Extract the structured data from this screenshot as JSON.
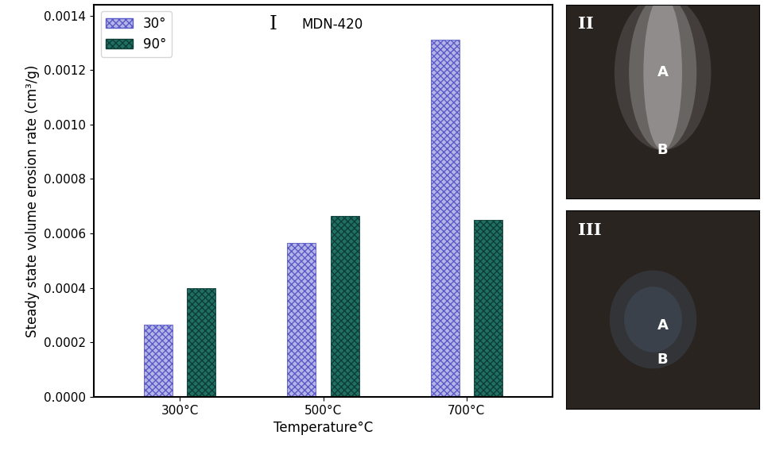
{
  "chart_data": {
    "type": "bar",
    "annotations": [
      "I",
      "MDN-420"
    ],
    "x_label": "Temperature°C",
    "y_label": "Steady state volume erosion rate (cm³/g)",
    "categories": [
      "300°C",
      "500°C",
      "700°C"
    ],
    "series": [
      {
        "name": "30°",
        "color": "#b4b4e6",
        "values": [
          0.000265,
          0.000565,
          0.00131
        ]
      },
      {
        "name": "90°",
        "color": "#1f6f63",
        "values": [
          0.0004,
          0.000665,
          0.00065
        ]
      }
    ],
    "ylim": [
      0,
      0.00144
    ],
    "yticks": [
      {
        "value": 0,
        "label": "0.0000"
      },
      {
        "value": 0.0002,
        "label": "0.0002"
      },
      {
        "value": 0.0004,
        "label": "0.0004"
      },
      {
        "value": 0.0006,
        "label": "0.0006"
      },
      {
        "value": 0.0008,
        "label": "0.0008"
      },
      {
        "value": 0.001,
        "label": "0.0010"
      },
      {
        "value": 0.0012,
        "label": "0.0012"
      },
      {
        "value": 0.0014,
        "label": "0.0014"
      }
    ],
    "legend": "upper left",
    "grid": false
  },
  "panels": [
    {
      "label": "II",
      "marks": [
        "A",
        "B"
      ]
    },
    {
      "label": "III",
      "marks": [
        "A",
        "B"
      ]
    }
  ]
}
